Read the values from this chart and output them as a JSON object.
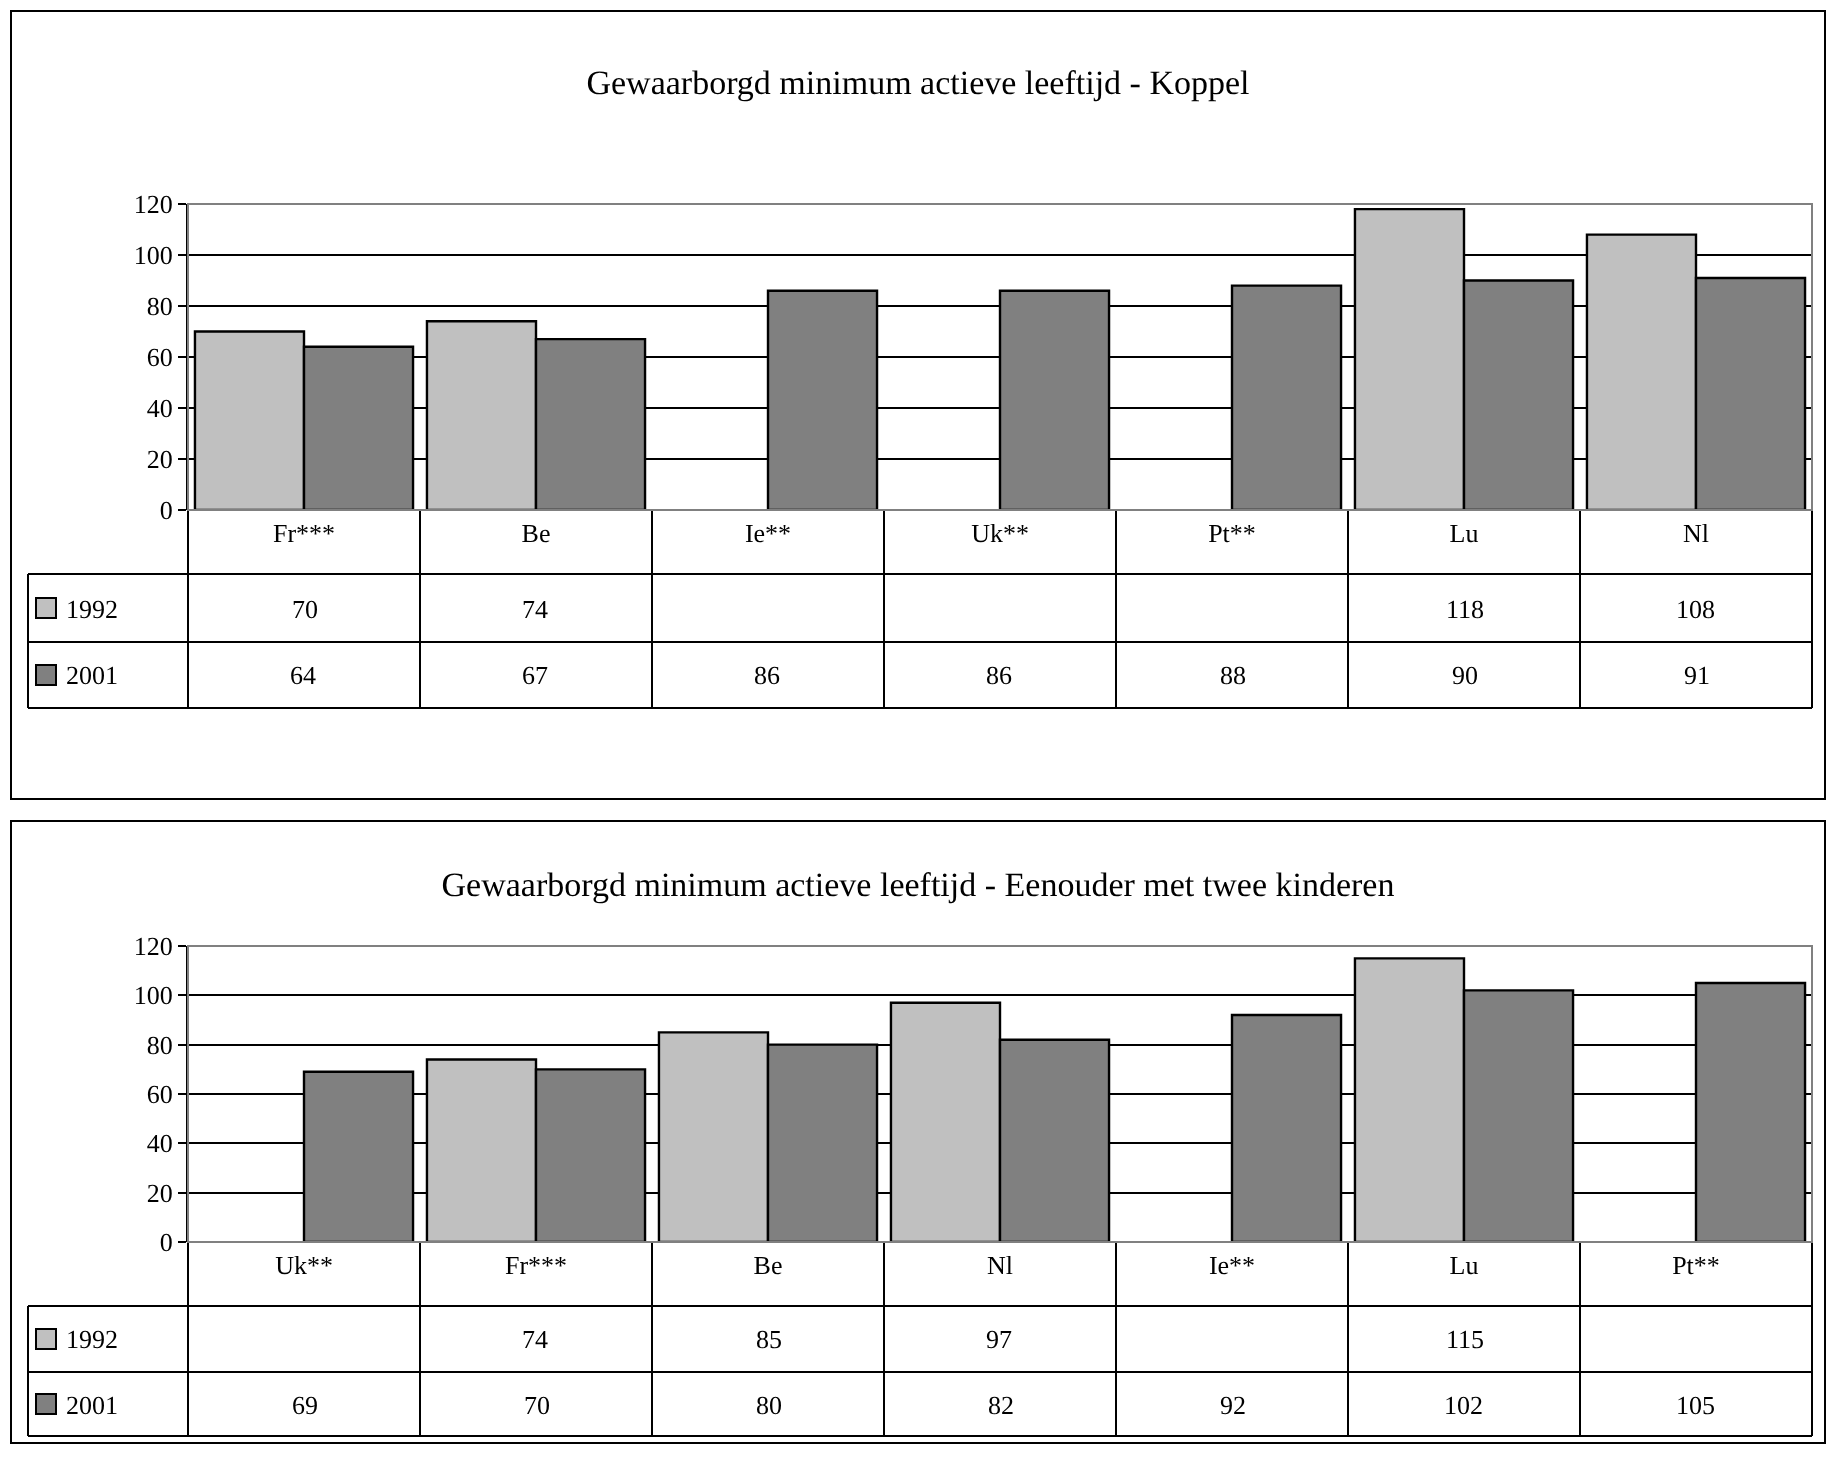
{
  "chart_data": [
    {
      "type": "bar",
      "title": "Gewaarborgd minimum actieve leeftijd - Koppel",
      "categories": [
        "Fr***",
        "Be",
        "Ie**",
        "Uk**",
        "Pt**",
        "Lu",
        "Nl"
      ],
      "series": [
        {
          "name": "1992",
          "color": "#c0c0c0",
          "values": [
            70,
            74,
            null,
            null,
            null,
            118,
            108
          ]
        },
        {
          "name": "2001",
          "color": "#808080",
          "values": [
            64,
            67,
            86,
            86,
            88,
            90,
            91
          ]
        }
      ],
      "ylim": [
        0,
        120
      ],
      "yticks": [
        0,
        20,
        40,
        60,
        80,
        100,
        120
      ],
      "grid": "y",
      "data_labels": true,
      "legend": "bottom left"
    },
    {
      "type": "bar",
      "title": "Gewaarborgd minimum actieve leeftijd - Eenouder met twee kinderen",
      "categories": [
        "Uk**",
        "Fr***",
        "Be",
        "Nl",
        "Ie**",
        "Lu",
        "Pt**"
      ],
      "series": [
        {
          "name": "1992",
          "color": "#c0c0c0",
          "values": [
            null,
            74,
            85,
            97,
            null,
            115,
            null
          ]
        },
        {
          "name": "2001",
          "color": "#808080",
          "values": [
            69,
            70,
            80,
            82,
            92,
            102,
            105
          ]
        }
      ],
      "ylim": [
        0,
        120
      ],
      "yticks": [
        0,
        20,
        40,
        60,
        80,
        100,
        120
      ],
      "grid": "y",
      "data_labels": true,
      "legend": "bottom left"
    }
  ]
}
